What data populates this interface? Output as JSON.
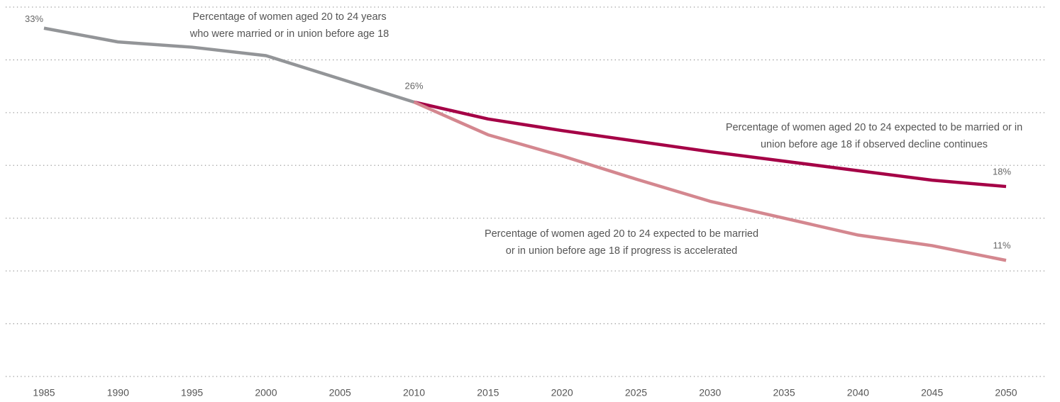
{
  "chart_data": {
    "type": "line",
    "xlim": [
      1985,
      2050
    ],
    "xticks": [
      1985,
      1990,
      1995,
      2000,
      2005,
      2010,
      2015,
      2020,
      2025,
      2030,
      2035,
      2040,
      2045,
      2050
    ],
    "ylim": [
      0,
      35
    ],
    "yticks": [
      0,
      5,
      10,
      15,
      20,
      25,
      30,
      35
    ],
    "grid": true,
    "series": [
      {
        "name": [
          "Percentage of women aged 20 to 24 years",
          "who were married or in union before age 18"
        ],
        "color": "#939598",
        "x": [
          1985,
          1990,
          1995,
          2000,
          2010
        ],
        "values": [
          33,
          31.7,
          31.2,
          30.4,
          26
        ],
        "value_labels": [
          "33%",
          null,
          null,
          null,
          "26%"
        ]
      },
      {
        "name": [
          "Percentage of women aged 20 to 24 expected to be married or in",
          "union before age 18 if observed decline continues"
        ],
        "color": "#a50046",
        "x": [
          2010,
          2015,
          2020,
          2030,
          2040,
          2045,
          2050
        ],
        "values": [
          26,
          24.4,
          23.3,
          21.3,
          19.5,
          18.6,
          18
        ],
        "value_labels": [
          null,
          null,
          null,
          null,
          null,
          null,
          "18%"
        ]
      },
      {
        "name": [
          "Percentage of women aged 20 to 24 expected to be married",
          "or in union before age 18 if progress is accelerated"
        ],
        "color": "#d4878f",
        "x": [
          2010,
          2015,
          2020,
          2025,
          2030,
          2035,
          2040,
          2045,
          2050
        ],
        "values": [
          26,
          22.9,
          20.9,
          18.7,
          16.6,
          15.0,
          13.4,
          12.4,
          11
        ],
        "value_labels": [
          null,
          null,
          null,
          null,
          null,
          null,
          null,
          null,
          "11%"
        ]
      }
    ]
  }
}
